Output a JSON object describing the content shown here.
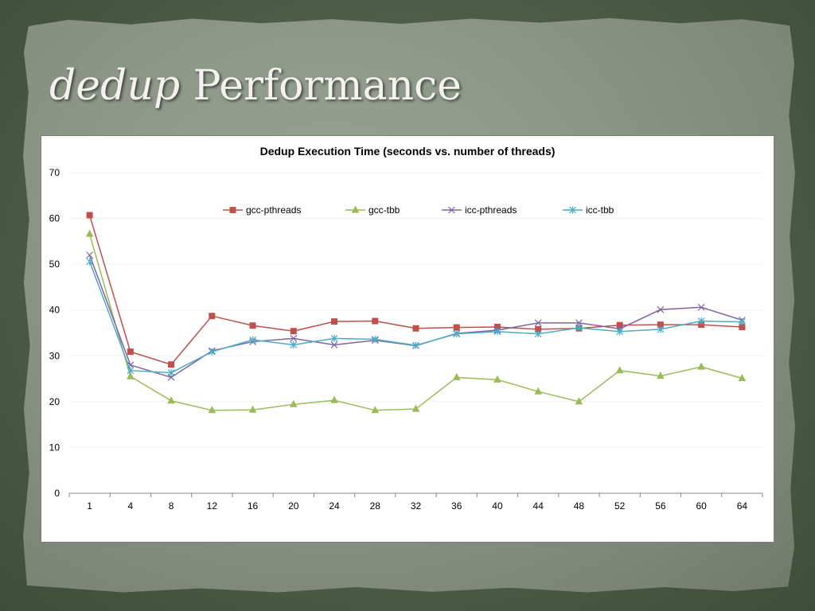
{
  "slide": {
    "title_italic": "dedup",
    "title_rest": "Performance"
  },
  "chart_data": {
    "type": "line",
    "title": "Dedup Execution Time (seconds vs. number of threads)",
    "xlabel": "",
    "ylabel": "",
    "x": [
      "1",
      "4",
      "8",
      "12",
      "16",
      "20",
      "24",
      "28",
      "32",
      "36",
      "40",
      "44",
      "48",
      "52",
      "56",
      "60",
      "64"
    ],
    "ylim": [
      0,
      70
    ],
    "yticks": [
      0,
      10,
      20,
      30,
      40,
      50,
      60,
      70
    ],
    "grid": true,
    "legend_position": "top",
    "series": [
      {
        "name": "gcc-pthreads",
        "color": "#c0504d",
        "marker": "square",
        "values": [
          60.7,
          30.9,
          28.1,
          38.7,
          36.6,
          35.4,
          37.5,
          37.6,
          36.0,
          36.2,
          36.3,
          35.8,
          36.0,
          36.7,
          36.8,
          36.8,
          36.3
        ]
      },
      {
        "name": "gcc-tbb",
        "color": "#9bbb59",
        "marker": "triangle",
        "values": [
          56.6,
          25.5,
          20.2,
          18.1,
          18.2,
          19.4,
          20.3,
          18.1,
          18.4,
          25.3,
          24.8,
          22.2,
          20.0,
          26.8,
          25.6,
          27.6,
          25.1
        ]
      },
      {
        "name": "icc-pthreads",
        "color": "#8064a2",
        "marker": "x",
        "values": [
          52.0,
          28.0,
          25.3,
          31.1,
          33.1,
          33.8,
          32.4,
          33.4,
          32.2,
          34.9,
          35.6,
          37.2,
          37.2,
          35.9,
          40.1,
          40.6,
          37.8
        ]
      },
      {
        "name": "icc-tbb",
        "color": "#4bacc6",
        "marker": "star",
        "values": [
          50.6,
          26.8,
          26.3,
          30.9,
          33.5,
          32.4,
          33.8,
          33.6,
          32.3,
          34.8,
          35.3,
          34.8,
          36.1,
          35.3,
          35.8,
          37.6,
          37.4
        ]
      }
    ]
  }
}
